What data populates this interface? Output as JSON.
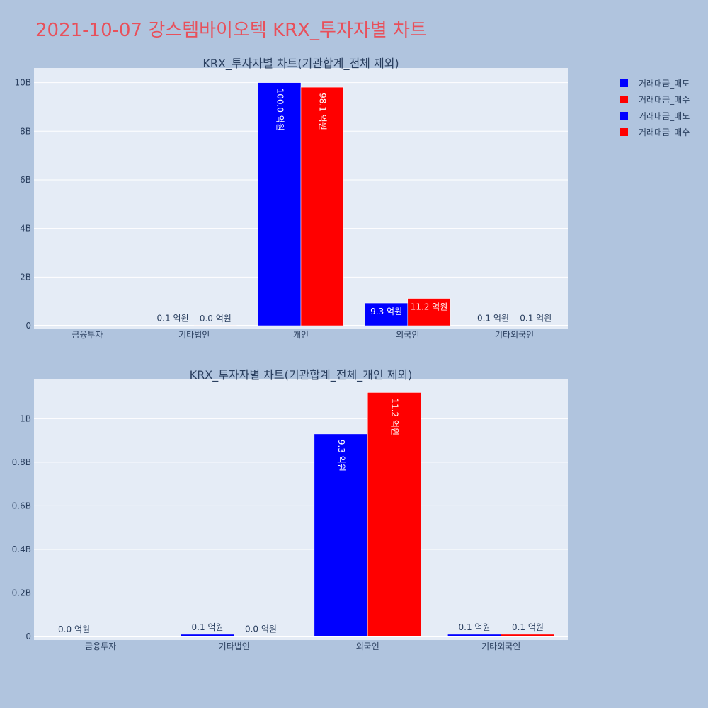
{
  "title": "2021-10-07 강스템바이오텍 KRX_투자자별 차트",
  "colors": {
    "sell": "#0000ff",
    "buy": "#ff0000",
    "plot_bg": "#e5ecf6",
    "page_bg": "#b0c4de"
  },
  "legend": [
    {
      "label": "거래대금_매도",
      "color": "#0000ff"
    },
    {
      "label": "거래대금_매수",
      "color": "#ff0000"
    },
    {
      "label": "거래대금_매도",
      "color": "#0000ff"
    },
    {
      "label": "거래대금_매수",
      "color": "#ff0000"
    }
  ],
  "chart_data": [
    {
      "type": "bar",
      "title": "KRX_투자자별 차트(기관합계_전체 제외)",
      "categories": [
        "금융투자",
        "기타법인",
        "개인",
        "외국인",
        "기타외국인"
      ],
      "series": [
        {
          "name": "거래대금_매도",
          "values": [
            0,
            10000000,
            10000000000,
            930000000,
            10000000
          ],
          "labels": [
            "",
            "0.1 억원",
            "100.0 억원",
            "9.3 억원",
            "0.1 억원"
          ]
        },
        {
          "name": "거래대금_매수",
          "values": [
            0,
            2000000,
            9810000000,
            1120000000,
            10000000
          ],
          "labels": [
            "",
            "0.0 억원",
            "98.1 억원",
            "11.2 억원",
            "0.1 억원"
          ]
        }
      ],
      "ylim": [
        0,
        10600000000
      ],
      "yticks": [
        0,
        2000000000,
        4000000000,
        6000000000,
        8000000000,
        10000000000
      ],
      "ytick_labels": [
        "0",
        "2B",
        "4B",
        "6B",
        "8B",
        "10B"
      ],
      "grid": true
    },
    {
      "type": "bar",
      "title": "KRX_투자자별 차트(기관합계_전체_개인 제외)",
      "categories": [
        "금융투자",
        "기타법인",
        "외국인",
        "기타외국인"
      ],
      "series": [
        {
          "name": "거래대금_매도",
          "values": [
            0,
            10000000,
            930000000,
            10000000
          ],
          "labels": [
            "0.0 억원",
            "0.1 억원",
            "9.3 억원",
            "0.1 억원"
          ]
        },
        {
          "name": "거래대금_매수",
          "values": [
            0,
            2000000,
            1120000000,
            10000000
          ],
          "labels": [
            "",
            "0.0 억원",
            "11.2 억원",
            "0.1 억원"
          ]
        }
      ],
      "ylim": [
        0,
        1180000000
      ],
      "yticks": [
        0,
        200000000,
        400000000,
        600000000,
        800000000,
        1000000000
      ],
      "ytick_labels": [
        "0",
        "0.2B",
        "0.4B",
        "0.6B",
        "0.8B",
        "1B"
      ],
      "grid": true
    }
  ]
}
